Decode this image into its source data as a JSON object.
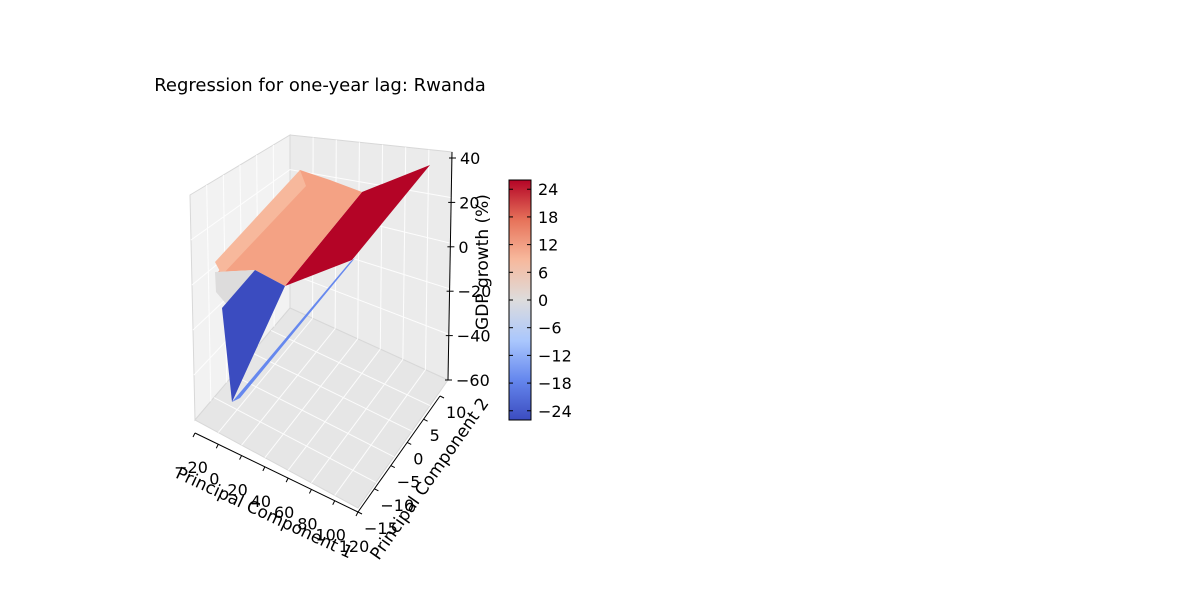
{
  "chart_data": {
    "type": "surface3d",
    "title": "Regression for one-year lag: Rwanda",
    "xlabel": "Principal Component 1",
    "ylabel": "Principal Component 2",
    "zlabel": "GDP growth (%)",
    "xlim": [
      -20,
      120
    ],
    "ylim": [
      -15,
      10
    ],
    "zlim": [
      -60,
      40
    ],
    "x_ticks": [
      "−20",
      "0",
      "20",
      "40",
      "60",
      "80",
      "100",
      "120"
    ],
    "y_ticks": [
      "−15",
      "−10",
      "−5",
      "0",
      "5",
      "10"
    ],
    "z_ticks": [
      "−60",
      "−40",
      "−20",
      "0",
      "20",
      "40"
    ],
    "surface": {
      "x": [
        -20,
        120
      ],
      "y": [
        -15,
        10
      ],
      "z_at_min_y": -55,
      "z_at_max_y": 35
    },
    "colorbar": {
      "ticks": [
        "−24",
        "−18",
        "−12",
        "−6",
        "0",
        "6",
        "12",
        "18",
        "24"
      ],
      "range": [
        -26,
        26
      ],
      "colormap": "coolwarm",
      "stops": [
        "#3b4cc0",
        "#6688ee",
        "#aac7fd",
        "#dddcdc",
        "#f7b89c",
        "#e7745b",
        "#b40426"
      ]
    },
    "grid": true
  }
}
